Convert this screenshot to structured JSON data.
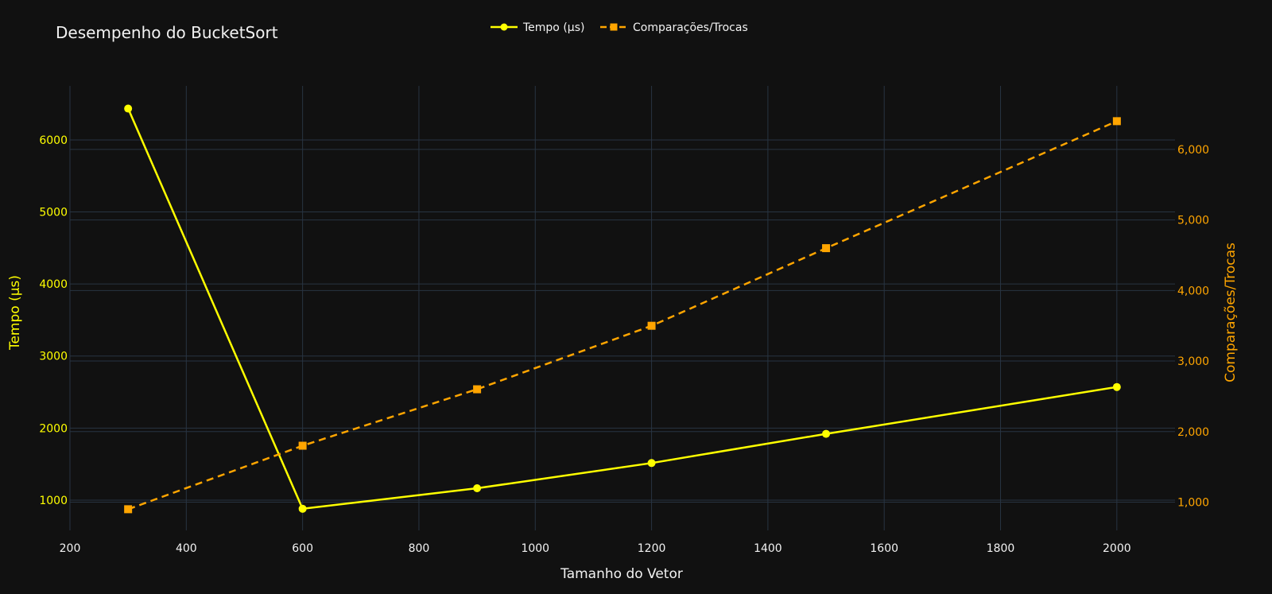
{
  "chart_data": {
    "type": "line",
    "title": "Desempenho do BucketSort",
    "xlabel": "Tamanho do Vetor",
    "ylabel": "Tempo (μs)",
    "y2label": "Comparações/Trocas",
    "x": [
      300,
      600,
      900,
      1200,
      1500,
      2000
    ],
    "xlim": [
      200,
      2100
    ],
    "xticks": [
      200,
      400,
      600,
      800,
      1000,
      1200,
      1400,
      1600,
      1800,
      2000
    ],
    "ylim": [
      580,
      6750
    ],
    "yticks": [
      1000,
      2000,
      3000,
      4000,
      5000,
      6000
    ],
    "y2lim": [
      600,
      6900
    ],
    "y2ticks": [
      1000,
      2000,
      3000,
      4000,
      5000,
      6000
    ],
    "y2ticklabels": [
      "1,000",
      "2,000",
      "3,000",
      "4,000",
      "5,000",
      "6,000"
    ],
    "grid": true,
    "legend_position": "top-center",
    "series": [
      {
        "name": "Tempo (μs)",
        "axis": "left",
        "color": "#ffff00",
        "marker": "circle",
        "dash": "solid",
        "values": [
          6435,
          880,
          1165,
          1515,
          1920,
          2570
        ]
      },
      {
        "name": "Comparações/Trocas",
        "axis": "right",
        "color": "#ffa500",
        "marker": "square",
        "dash": "dash",
        "values": [
          900,
          1800,
          2600,
          3500,
          4600,
          6400
        ]
      }
    ]
  }
}
